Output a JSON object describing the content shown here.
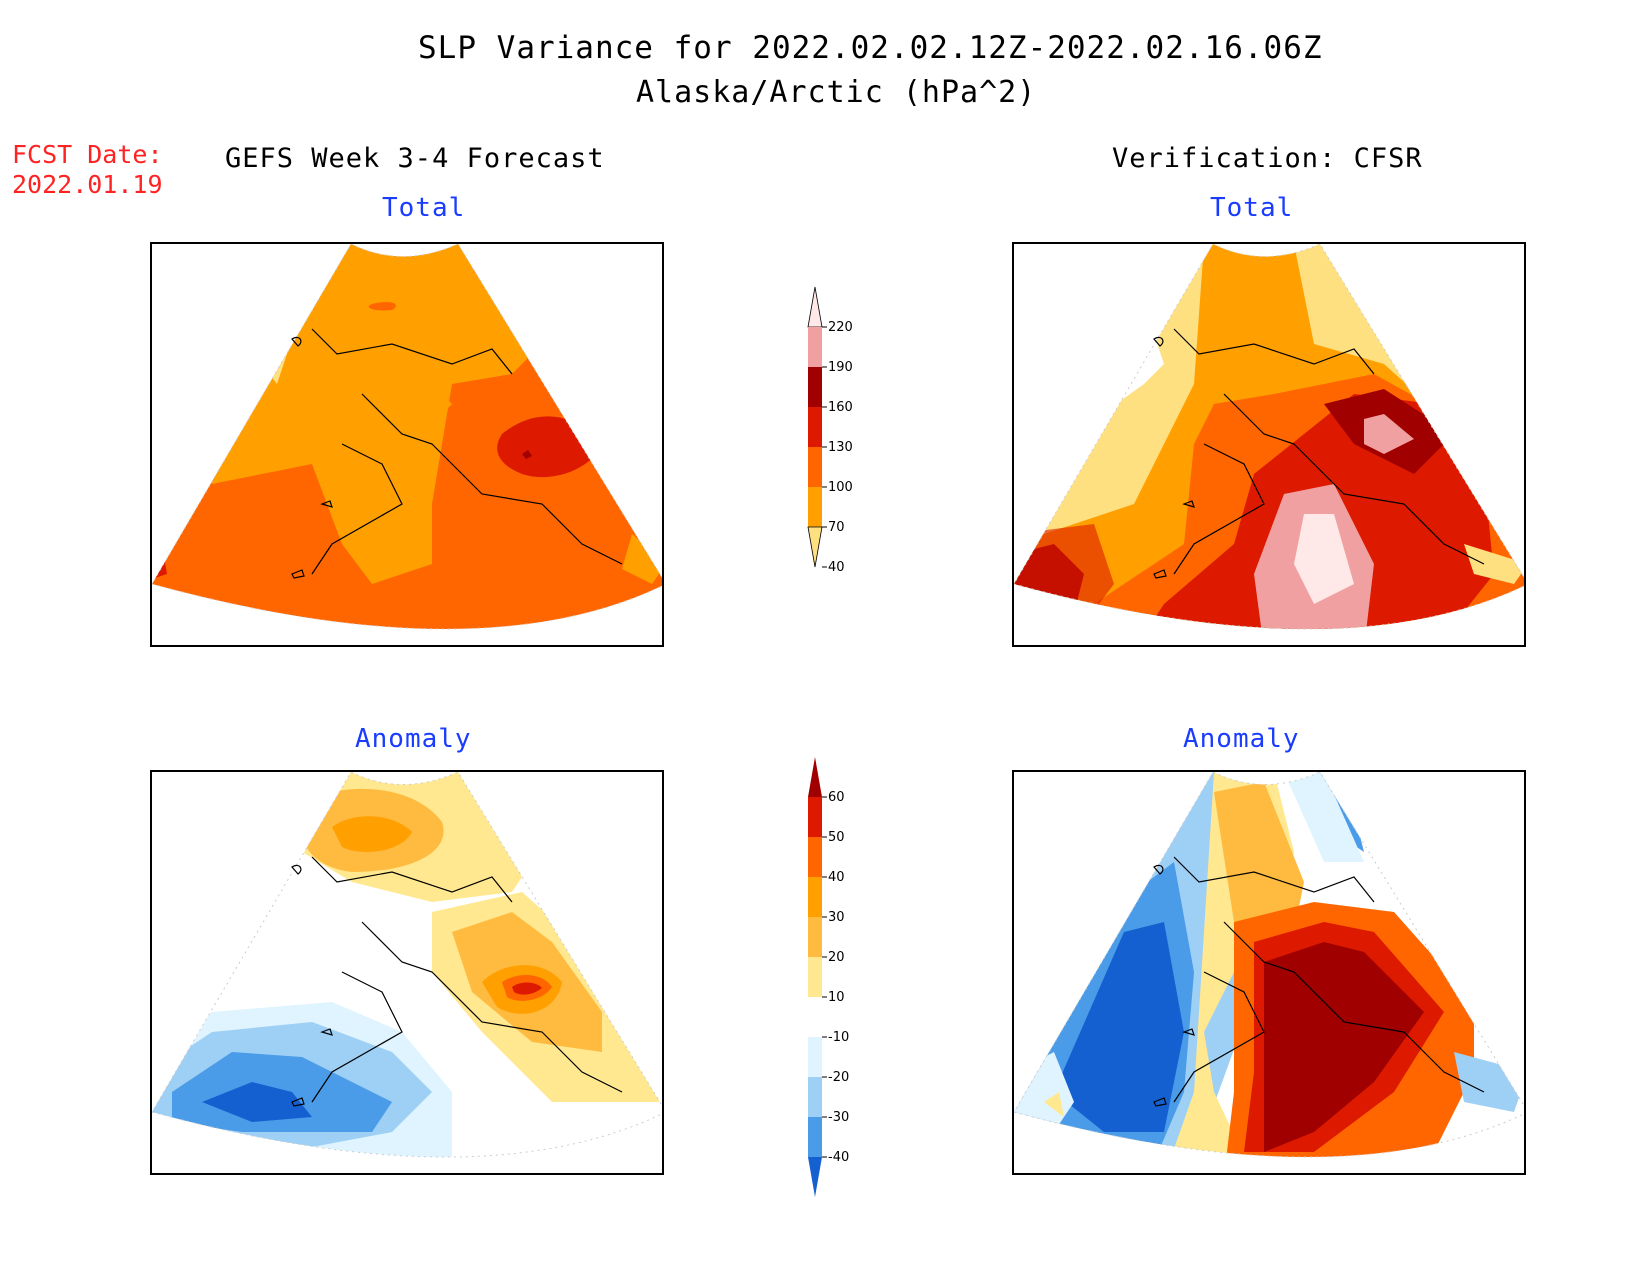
{
  "header": {
    "title": "SLP Variance for 2022.02.02.12Z-2022.02.16.06Z",
    "subtitle": "Alaska/Arctic (hPa^2)",
    "fcst_label": "FCST Date:",
    "fcst_date": "2022.01.19",
    "left_column": "GEFS Week 3-4 Forecast",
    "right_column": "Verification: CFSR"
  },
  "panels": {
    "forecast_total": {
      "title": "Total"
    },
    "verification_total": {
      "title": "Total"
    },
    "forecast_anomaly": {
      "title": "Anomaly"
    },
    "verification_anomaly": {
      "title": "Anomaly"
    }
  },
  "colorbars": {
    "total": {
      "levels": [
        "220",
        "190",
        "160",
        "130",
        "100",
        "70",
        "40"
      ],
      "colors": [
        "#ffe8e8",
        "#f0a0a0",
        "#a00000",
        "#dd1a00",
        "#ff6600",
        "#ffa000",
        "#ffe080"
      ]
    },
    "anomaly": {
      "levels": [
        "60",
        "50",
        "40",
        "30",
        "20",
        "10",
        "-10",
        "-20",
        "-30",
        "-40"
      ],
      "colors": [
        "#a00000",
        "#dd1a00",
        "#ff6600",
        "#ffa000",
        "#ffbb40",
        "#ffe890",
        "#ffffff",
        "#dff4ff",
        "#9ecff5",
        "#4a9be8",
        "#1560d0"
      ]
    }
  }
}
